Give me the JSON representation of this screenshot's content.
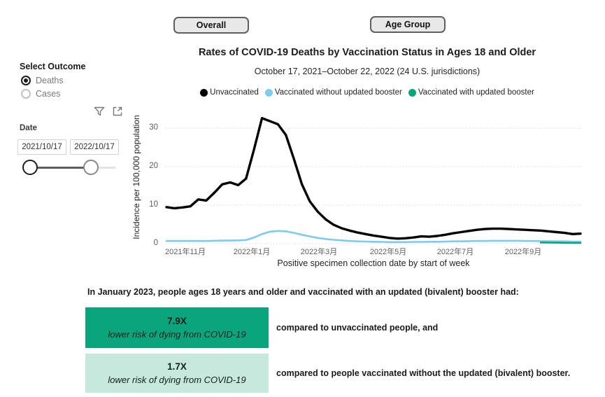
{
  "tabs": {
    "overall": "Overall",
    "age_group": "Age Group"
  },
  "sidebar": {
    "outcome_label": "Select Outcome",
    "options": [
      {
        "label": "Deaths",
        "selected": true
      },
      {
        "label": "Cases",
        "selected": false
      }
    ],
    "icons": [
      "filter-icon",
      "focus-mode-icon"
    ],
    "date_label": "Date",
    "date_start": "2021/10/17",
    "date_end": "2022/10/17"
  },
  "chart": {
    "title": "Rates of COVID-19 Deaths by Vaccination Status in Ages 18 and Older",
    "subtitle": "October 17, 2021–October 22, 2022 (24 U.S. jurisdictions)",
    "legend": [
      {
        "label": "Unvaccinated",
        "color": "#000000"
      },
      {
        "label": "Vaccinated without updated booster",
        "color": "#7ccbf0"
      },
      {
        "label": "Vaccinated with updated booster",
        "color": "#0ba57d"
      }
    ]
  },
  "chart_data": {
    "type": "line",
    "title": "Rates of COVID-19 Deaths by Vaccination Status in Ages 18 and Older",
    "xlabel": "Positive specimen collection date by start of week",
    "ylabel": "Incidence per 100,000 population",
    "ylim": [
      0,
      33
    ],
    "yticks": [
      0,
      10,
      20,
      30
    ],
    "xticks": [
      "2021年11月",
      "2022年1月",
      "2022年3月",
      "2022年5月",
      "2022年7月",
      "2022年9月"
    ],
    "grid": true,
    "legend_position": "top",
    "x_unit": "week starting 2021-10-17, 53 weekly points",
    "series": [
      {
        "name": "Unvaccinated",
        "color": "#000000",
        "values": [
          9.5,
          9.2,
          9.4,
          9.7,
          11.5,
          11.2,
          13.2,
          15.4,
          15.9,
          15.2,
          16.9,
          24.5,
          32.6,
          31.8,
          31.0,
          28.2,
          22.0,
          15.5,
          11.0,
          8.3,
          6.3,
          4.9,
          4.0,
          3.4,
          2.9,
          2.5,
          2.1,
          1.8,
          1.5,
          1.3,
          1.4,
          1.6,
          1.9,
          1.8,
          2.0,
          2.3,
          2.7,
          3.0,
          3.3,
          3.6,
          3.8,
          3.9,
          3.9,
          3.8,
          3.7,
          3.6,
          3.5,
          3.4,
          3.2,
          3.0,
          2.8,
          2.5,
          2.6
        ]
      },
      {
        "name": "Vaccinated without updated booster",
        "color": "#7ccbf0",
        "values": [
          0.7,
          0.7,
          0.7,
          0.7,
          0.7,
          0.7,
          0.75,
          0.8,
          0.8,
          0.85,
          0.95,
          1.6,
          2.5,
          3.1,
          3.3,
          3.2,
          2.8,
          2.3,
          1.9,
          1.5,
          1.2,
          1.0,
          0.85,
          0.7,
          0.6,
          0.55,
          0.5,
          0.45,
          0.4,
          0.4,
          0.4,
          0.45,
          0.45,
          0.5,
          0.5,
          0.55,
          0.6,
          0.6,
          0.65,
          0.7,
          0.7,
          0.75,
          0.75,
          0.75,
          0.75,
          0.7,
          0.7,
          0.65,
          0.65,
          0.6,
          0.6,
          0.55,
          0.55
        ]
      },
      {
        "name": "Vaccinated with updated booster",
        "color": "#0ba57d",
        "values": [
          null,
          null,
          null,
          null,
          null,
          null,
          null,
          null,
          null,
          null,
          null,
          null,
          null,
          null,
          null,
          null,
          null,
          null,
          null,
          null,
          null,
          null,
          null,
          null,
          null,
          null,
          null,
          null,
          null,
          null,
          null,
          null,
          null,
          null,
          null,
          null,
          null,
          null,
          null,
          null,
          null,
          null,
          null,
          null,
          null,
          null,
          null,
          0.3,
          0.27,
          0.25,
          0.22,
          0.2,
          0.2
        ]
      }
    ]
  },
  "callout": {
    "intro": "In January 2023, people ages 18 years and older and vaccinated with an updated (bivalent) booster had:",
    "items": [
      {
        "factor": "7.9X",
        "caption": "lower risk of dying from COVID-19",
        "note": "compared to unvaccinated people, and",
        "bg": "#0ba57d"
      },
      {
        "factor": "1.7X",
        "caption": "lower risk of dying from COVID-19",
        "note": "compared to people vaccinated without the updated (bivalent) booster.",
        "bg": "#c7e8dc"
      }
    ]
  }
}
